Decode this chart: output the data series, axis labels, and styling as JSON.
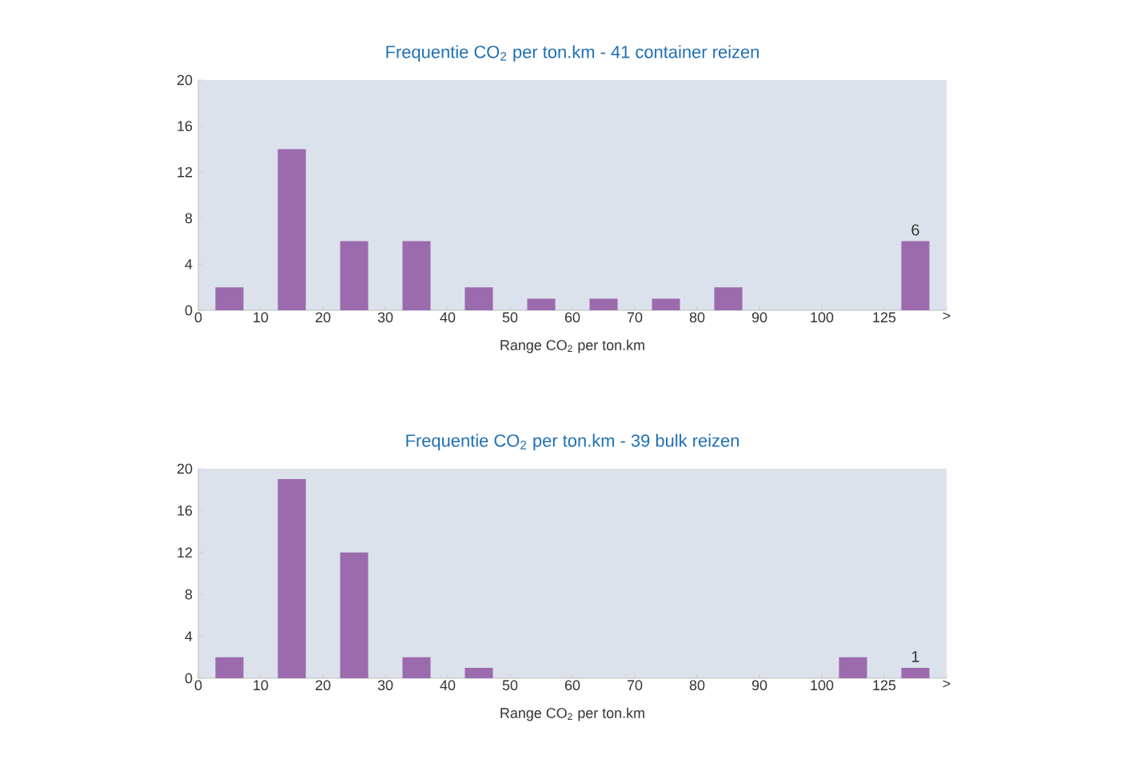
{
  "chart_data": [
    {
      "type": "bar",
      "title": "Frequentie CO$_{2}$ per ton.km - 41 container reizen",
      "xlabel": "Range CO$_{2}$ per ton.km",
      "categories": [
        null,
        null,
        null,
        null,
        null,
        null,
        null,
        null,
        null,
        null,
        null,
        null
      ],
      "values": [
        2,
        14,
        6,
        6,
        2,
        1,
        1,
        1,
        2,
        0,
        0,
        6
      ],
      "value_labels": [
        null,
        null,
        null,
        null,
        null,
        null,
        null,
        null,
        null,
        null,
        null,
        "6"
      ],
      "color": "#9b6bae",
      "annotations": [
        "0",
        "10",
        "20",
        "30",
        "40",
        "50",
        "60",
        "70",
        "80",
        "90",
        "100",
        "125",
        ">"
      ],
      "ylim": [
        0,
        20
      ],
      "yticks": [
        0,
        4,
        8,
        12,
        16,
        20
      ]
    },
    {
      "type": "bar",
      "title": "Frequentie CO$_{2}$ per ton.km - 39 bulk reizen",
      "xlabel": "Range CO$_{2}$ per ton.km",
      "categories": [
        null,
        null,
        null,
        null,
        null,
        null,
        null,
        null,
        null,
        null,
        null,
        null
      ],
      "values": [
        2,
        19,
        12,
        2,
        1,
        0,
        0,
        0,
        0,
        0,
        2,
        1
      ],
      "value_labels": [
        null,
        null,
        null,
        null,
        null,
        null,
        null,
        null,
        null,
        null,
        null,
        "1"
      ],
      "color": "#9b6bae",
      "annotations": [
        "0",
        "10",
        "20",
        "30",
        "40",
        "50",
        "60",
        "70",
        "80",
        "90",
        "100",
        "125",
        ">"
      ],
      "ylim": [
        0,
        20
      ],
      "yticks": [
        0,
        4,
        8,
        12,
        16,
        20
      ]
    }
  ]
}
